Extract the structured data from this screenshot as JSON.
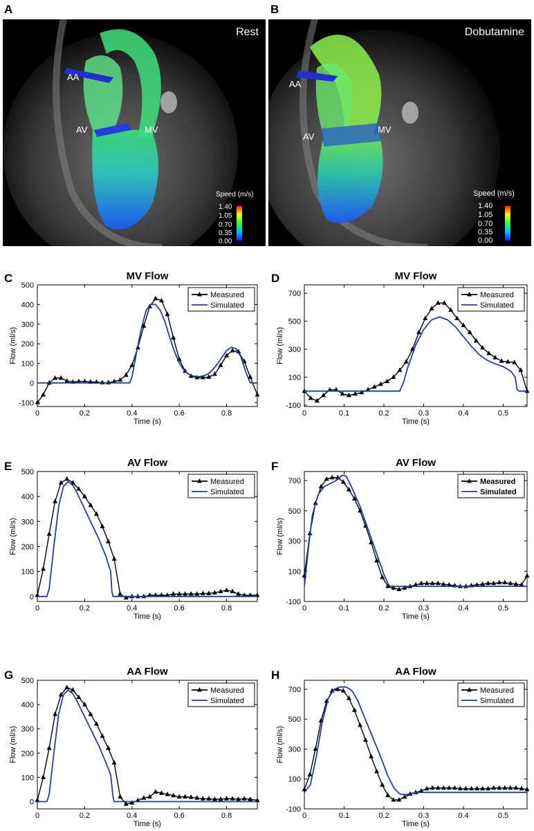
{
  "mri": {
    "A": {
      "letter": "A",
      "title": "Rest",
      "labels": {
        "aa": "AA",
        "av": "AV",
        "mv": "MV"
      },
      "colorbar": {
        "title": "Speed (m/s)",
        "ticks": [
          "1.40",
          "1.05",
          "0.70",
          "0.35",
          "0.00"
        ]
      }
    },
    "B": {
      "letter": "B",
      "title": "Dobutamine",
      "labels": {
        "aa": "AA",
        "av": "AV",
        "mv": "MV"
      },
      "colorbar": {
        "title": "Speed (m/s)",
        "ticks": [
          "1.40",
          "1.05",
          "0.70",
          "0.35",
          "0.00"
        ]
      }
    }
  },
  "colors": {
    "measured": "#000000",
    "simulated": "#1f3f99"
  },
  "chart_data": [
    {
      "id": "C",
      "letter": "C",
      "type": "line",
      "title": "MV Flow",
      "xlabel": "Time (s)",
      "ylabel": "Flow (ml/s)",
      "xlim": [
        0,
        0.93
      ],
      "ylim": [
        -120,
        500
      ],
      "xticks": [
        0,
        0.2,
        0.4,
        0.6,
        0.8
      ],
      "xtick_labels": [
        "0",
        "0.2",
        "0.4",
        "0.6",
        "0.8"
      ],
      "yticks": [
        -100,
        0,
        100,
        200,
        300,
        400,
        500
      ],
      "ytick_labels": [
        "-100",
        "0",
        "100",
        "200",
        "300",
        "400",
        "500"
      ],
      "legend": [
        "Measured",
        "Simulated"
      ],
      "series": [
        {
          "name": "Measured",
          "marker": "triangle",
          "x": [
            0,
            0.025,
            0.05,
            0.075,
            0.1,
            0.125,
            0.15,
            0.175,
            0.2,
            0.225,
            0.25,
            0.275,
            0.3,
            0.325,
            0.35,
            0.375,
            0.4,
            0.425,
            0.45,
            0.475,
            0.5,
            0.525,
            0.55,
            0.575,
            0.6,
            0.625,
            0.65,
            0.675,
            0.7,
            0.725,
            0.75,
            0.775,
            0.8,
            0.825,
            0.85,
            0.875,
            0.9,
            0.93
          ],
          "y": [
            -100,
            -60,
            0,
            25,
            25,
            10,
            5,
            8,
            8,
            5,
            5,
            2,
            2,
            8,
            15,
            40,
            90,
            180,
            290,
            390,
            430,
            420,
            350,
            230,
            120,
            60,
            35,
            28,
            28,
            30,
            45,
            90,
            140,
            165,
            160,
            110,
            30,
            -60
          ]
        },
        {
          "name": "Simulated",
          "marker": "none",
          "x": [
            0,
            0.39,
            0.4,
            0.42,
            0.44,
            0.46,
            0.48,
            0.5,
            0.52,
            0.54,
            0.56,
            0.58,
            0.6,
            0.62,
            0.64,
            0.66,
            0.68,
            0.7,
            0.72,
            0.74,
            0.76,
            0.78,
            0.8,
            0.82,
            0.84,
            0.86,
            0.88,
            0.9,
            0.93
          ],
          "y": [
            0,
            0,
            30,
            160,
            280,
            370,
            400,
            400,
            370,
            310,
            230,
            160,
            100,
            65,
            45,
            35,
            32,
            35,
            45,
            65,
            95,
            130,
            165,
            182,
            175,
            135,
            60,
            0,
            0
          ]
        }
      ]
    },
    {
      "id": "D",
      "letter": "D",
      "type": "line",
      "title": "MV Flow",
      "xlabel": "Time (s)",
      "ylabel": "Flow (ml/s)",
      "xlim": [
        0,
        0.56
      ],
      "ylim": [
        -110,
        760
      ],
      "xticks": [
        0,
        0.1,
        0.2,
        0.3,
        0.4,
        0.5
      ],
      "xtick_labels": [
        "0",
        "0.1",
        "0.2",
        "0.3",
        "0.4",
        "0.5"
      ],
      "yticks": [
        -100,
        100,
        300,
        500,
        700
      ],
      "ytick_labels": [
        "-100",
        "100",
        "300",
        "500",
        "700"
      ],
      "legend": [
        "Measured",
        "Simulated"
      ],
      "series": [
        {
          "name": "Measured",
          "marker": "triangle",
          "x": [
            0,
            0.016,
            0.032,
            0.048,
            0.064,
            0.08,
            0.096,
            0.112,
            0.128,
            0.144,
            0.16,
            0.176,
            0.192,
            0.208,
            0.224,
            0.24,
            0.256,
            0.272,
            0.288,
            0.304,
            0.32,
            0.336,
            0.352,
            0.368,
            0.384,
            0.4,
            0.416,
            0.432,
            0.448,
            0.464,
            0.48,
            0.496,
            0.512,
            0.528,
            0.544,
            0.56
          ],
          "y": [
            0,
            -50,
            -70,
            -30,
            10,
            10,
            -20,
            -30,
            -20,
            -10,
            10,
            30,
            50,
            70,
            100,
            150,
            210,
            300,
            420,
            520,
            590,
            630,
            630,
            580,
            520,
            470,
            420,
            360,
            310,
            270,
            240,
            215,
            210,
            205,
            150,
            0
          ]
        },
        {
          "name": "Simulated",
          "marker": "none",
          "x": [
            0,
            0.24,
            0.25,
            0.26,
            0.28,
            0.3,
            0.32,
            0.34,
            0.36,
            0.38,
            0.4,
            0.42,
            0.44,
            0.46,
            0.48,
            0.5,
            0.52,
            0.53,
            0.535,
            0.54,
            0.56
          ],
          "y": [
            0,
            0,
            70,
            170,
            330,
            440,
            510,
            530,
            510,
            460,
            390,
            320,
            260,
            220,
            195,
            175,
            140,
            100,
            10,
            0,
            0
          ]
        }
      ]
    },
    {
      "id": "E",
      "letter": "E",
      "type": "line",
      "title": "AV Flow",
      "xlabel": "Time (s)",
      "ylabel": "Flow (ml/s)",
      "xlim": [
        0,
        0.93
      ],
      "ylim": [
        -20,
        500
      ],
      "xticks": [
        0,
        0.2,
        0.4,
        0.6,
        0.8
      ],
      "xtick_labels": [
        "0",
        "0.2",
        "0.4",
        "0.6",
        "0.8"
      ],
      "yticks": [
        0,
        100,
        200,
        300,
        400,
        500
      ],
      "ytick_labels": [
        "0",
        "100",
        "200",
        "300",
        "400",
        "500"
      ],
      "legend": [
        "Measured",
        "Simulated"
      ],
      "series": [
        {
          "name": "Measured",
          "marker": "triangle",
          "x": [
            0,
            0.025,
            0.05,
            0.075,
            0.1,
            0.125,
            0.15,
            0.175,
            0.2,
            0.225,
            0.25,
            0.275,
            0.3,
            0.325,
            0.35,
            0.375,
            0.4,
            0.425,
            0.45,
            0.475,
            0.5,
            0.525,
            0.55,
            0.575,
            0.6,
            0.625,
            0.65,
            0.675,
            0.7,
            0.725,
            0.75,
            0.775,
            0.8,
            0.825,
            0.85,
            0.875,
            0.9,
            0.93
          ],
          "y": [
            5,
            110,
            250,
            380,
            455,
            470,
            455,
            430,
            400,
            365,
            330,
            280,
            220,
            150,
            10,
            -5,
            0,
            0,
            0,
            5,
            5,
            5,
            5,
            10,
            10,
            10,
            10,
            10,
            12,
            12,
            15,
            20,
            25,
            20,
            10,
            5,
            5,
            5
          ]
        },
        {
          "name": "Simulated",
          "marker": "none",
          "x": [
            0,
            0.04,
            0.05,
            0.07,
            0.09,
            0.11,
            0.13,
            0.15,
            0.17,
            0.2,
            0.23,
            0.26,
            0.29,
            0.31,
            0.315,
            0.32,
            0.93
          ],
          "y": [
            0,
            0,
            30,
            200,
            360,
            440,
            460,
            445,
            410,
            350,
            290,
            230,
            160,
            100,
            20,
            0,
            0
          ]
        }
      ]
    },
    {
      "id": "F",
      "letter": "F",
      "type": "line",
      "title": "AV Flow",
      "xlabel": "Time (s)",
      "ylabel": "Flow (ml/s)",
      "xlim": [
        0,
        0.56
      ],
      "ylim": [
        -100,
        760
      ],
      "xticks": [
        0,
        0.1,
        0.2,
        0.3,
        0.4,
        0.5
      ],
      "xtick_labels": [
        "0",
        "0.1",
        "0.2",
        "0.3",
        "0.4",
        "0.5"
      ],
      "yticks": [
        -100,
        100,
        300,
        500,
        700
      ],
      "ytick_labels": [
        "-100",
        "100",
        "300",
        "500",
        "700"
      ],
      "legend": [
        "Measured",
        "Simulated"
      ],
      "series": [
        {
          "name": "Measured",
          "marker": "triangle",
          "x": [
            0,
            0.014,
            0.028,
            0.042,
            0.056,
            0.07,
            0.084,
            0.098,
            0.112,
            0.126,
            0.14,
            0.154,
            0.168,
            0.182,
            0.196,
            0.21,
            0.224,
            0.238,
            0.252,
            0.266,
            0.28,
            0.294,
            0.308,
            0.322,
            0.336,
            0.35,
            0.364,
            0.378,
            0.392,
            0.406,
            0.42,
            0.434,
            0.448,
            0.462,
            0.476,
            0.49,
            0.504,
            0.518,
            0.532,
            0.546,
            0.56
          ],
          "y": [
            70,
            350,
            550,
            660,
            710,
            720,
            720,
            690,
            640,
            580,
            500,
            400,
            290,
            170,
            60,
            0,
            -10,
            -20,
            -10,
            0,
            10,
            20,
            20,
            20,
            20,
            15,
            10,
            5,
            0,
            0,
            5,
            10,
            15,
            20,
            20,
            25,
            25,
            20,
            15,
            10,
            70
          ]
        },
        {
          "name": "Simulated",
          "marker": "none",
          "x": [
            0,
            0.01,
            0.02,
            0.035,
            0.05,
            0.065,
            0.08,
            0.095,
            0.105,
            0.12,
            0.14,
            0.16,
            0.18,
            0.2,
            0.21,
            0.215,
            0.56
          ],
          "y": [
            0,
            250,
            470,
            610,
            660,
            680,
            700,
            735,
            730,
            650,
            530,
            380,
            230,
            80,
            20,
            0,
            0
          ]
        }
      ]
    },
    {
      "id": "G",
      "letter": "G",
      "type": "line",
      "title": "AA Flow",
      "xlabel": "Time (s)",
      "ylabel": "Flow (ml/s)",
      "xlim": [
        0,
        0.93
      ],
      "ylim": [
        -30,
        500
      ],
      "xticks": [
        0,
        0.2,
        0.4,
        0.6,
        0.8
      ],
      "xtick_labels": [
        "0",
        "0.2",
        "0.4",
        "0.6",
        "0.8"
      ],
      "yticks": [
        0,
        100,
        200,
        300,
        400,
        500
      ],
      "ytick_labels": [
        "0",
        "100",
        "200",
        "300",
        "400",
        "500"
      ],
      "legend": [
        "Measured",
        "Simulated"
      ],
      "series": [
        {
          "name": "Measured",
          "marker": "triangle",
          "x": [
            0,
            0.025,
            0.05,
            0.075,
            0.1,
            0.125,
            0.15,
            0.175,
            0.2,
            0.225,
            0.25,
            0.275,
            0.3,
            0.325,
            0.35,
            0.375,
            0.4,
            0.425,
            0.45,
            0.475,
            0.5,
            0.525,
            0.55,
            0.575,
            0.6,
            0.625,
            0.65,
            0.675,
            0.7,
            0.725,
            0.75,
            0.775,
            0.8,
            0.825,
            0.85,
            0.875,
            0.9,
            0.93
          ],
          "y": [
            5,
            100,
            220,
            360,
            440,
            470,
            460,
            430,
            400,
            360,
            320,
            270,
            220,
            160,
            20,
            -10,
            -5,
            5,
            15,
            20,
            40,
            35,
            30,
            25,
            20,
            20,
            18,
            15,
            12,
            12,
            10,
            10,
            12,
            12,
            10,
            12,
            10,
            5
          ]
        },
        {
          "name": "Simulated",
          "marker": "none",
          "x": [
            0,
            0.04,
            0.05,
            0.07,
            0.09,
            0.11,
            0.13,
            0.15,
            0.17,
            0.2,
            0.23,
            0.26,
            0.29,
            0.31,
            0.32,
            0.325,
            0.93
          ],
          "y": [
            0,
            0,
            30,
            200,
            360,
            440,
            460,
            445,
            410,
            350,
            290,
            230,
            160,
            110,
            20,
            0,
            0
          ]
        }
      ]
    },
    {
      "id": "H",
      "letter": "H",
      "type": "line",
      "title": "AA Flow",
      "xlabel": "Time (s)",
      "ylabel": "Flow (ml/s)",
      "xlim": [
        0,
        0.56
      ],
      "ylim": [
        -100,
        760
      ],
      "xticks": [
        0,
        0.1,
        0.2,
        0.3,
        0.4,
        0.5
      ],
      "xtick_labels": [
        "0",
        "0.1",
        "0.2",
        "0.3",
        "0.4",
        "0.5"
      ],
      "yticks": [
        -100,
        100,
        300,
        500,
        700
      ],
      "ytick_labels": [
        "-100",
        "100",
        "300",
        "500",
        "700"
      ],
      "legend": [
        "Measured",
        "Simulated"
      ],
      "series": [
        {
          "name": "Measured",
          "marker": "triangle",
          "x": [
            0,
            0.014,
            0.028,
            0.042,
            0.056,
            0.07,
            0.084,
            0.098,
            0.112,
            0.126,
            0.14,
            0.154,
            0.168,
            0.182,
            0.196,
            0.21,
            0.224,
            0.238,
            0.252,
            0.266,
            0.28,
            0.294,
            0.308,
            0.322,
            0.336,
            0.35,
            0.364,
            0.378,
            0.392,
            0.406,
            0.42,
            0.434,
            0.448,
            0.462,
            0.476,
            0.49,
            0.504,
            0.518,
            0.532,
            0.546,
            0.56
          ],
          "y": [
            30,
            130,
            300,
            490,
            620,
            690,
            700,
            690,
            640,
            560,
            460,
            360,
            250,
            150,
            60,
            -10,
            -40,
            -40,
            -20,
            0,
            10,
            20,
            35,
            40,
            40,
            40,
            40,
            40,
            35,
            35,
            35,
            35,
            35,
            35,
            40,
            40,
            40,
            40,
            40,
            35,
            30
          ]
        },
        {
          "name": "Simulated",
          "marker": "none",
          "x": [
            0,
            0.015,
            0.03,
            0.045,
            0.06,
            0.075,
            0.09,
            0.105,
            0.12,
            0.135,
            0.15,
            0.17,
            0.19,
            0.21,
            0.225,
            0.24,
            0.255,
            0.27,
            0.29,
            0.31,
            0.33,
            0.36,
            0.4,
            0.45,
            0.5,
            0.56
          ],
          "y": [
            10,
            60,
            250,
            480,
            640,
            700,
            715,
            715,
            690,
            620,
            520,
            390,
            260,
            120,
            40,
            0,
            -5,
            5,
            10,
            10,
            10,
            10,
            10,
            10,
            10,
            10
          ]
        }
      ]
    }
  ]
}
